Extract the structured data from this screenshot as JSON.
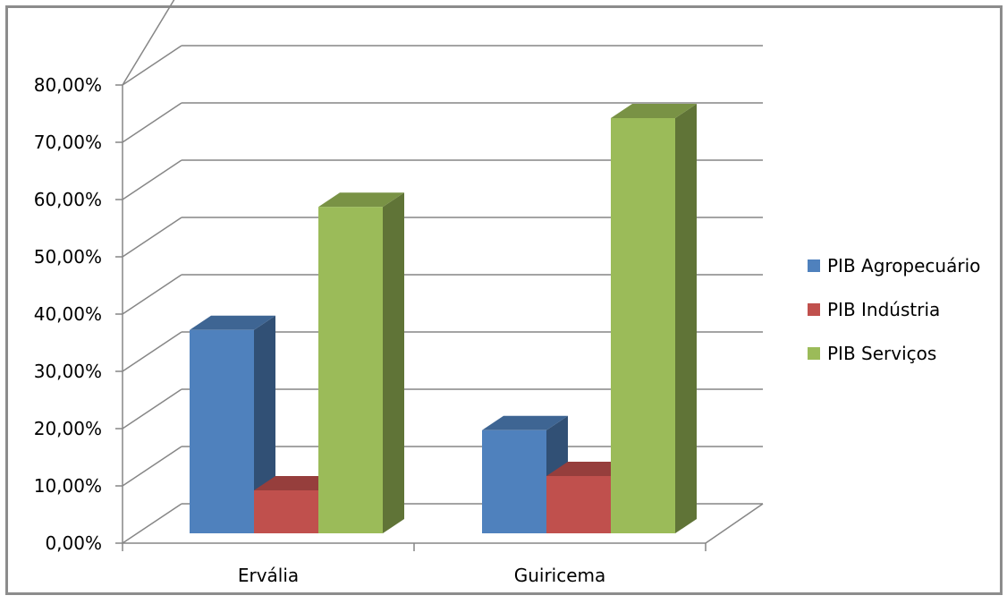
{
  "chart_data": {
    "type": "bar",
    "categories": [
      "Ervália",
      "Guiricema"
    ],
    "series": [
      {
        "name": "PIB Agropecuário",
        "values": [
          35.5,
          18
        ],
        "color": "#4f81bd"
      },
      {
        "name": "PIB Indústria",
        "values": [
          7.5,
          10
        ],
        "color": "#c0504d"
      },
      {
        "name": "PIB Serviços",
        "values": [
          57,
          72.5
        ],
        "color": "#9bbb59"
      }
    ],
    "y_ticks": [
      "0,00%",
      "10,00%",
      "20,00%",
      "30,00%",
      "40,00%",
      "50,00%",
      "60,00%",
      "70,00%",
      "80,00%"
    ],
    "ylim": [
      0,
      80
    ],
    "grid": true,
    "legend": "right",
    "style": "3d-clustered-column"
  }
}
